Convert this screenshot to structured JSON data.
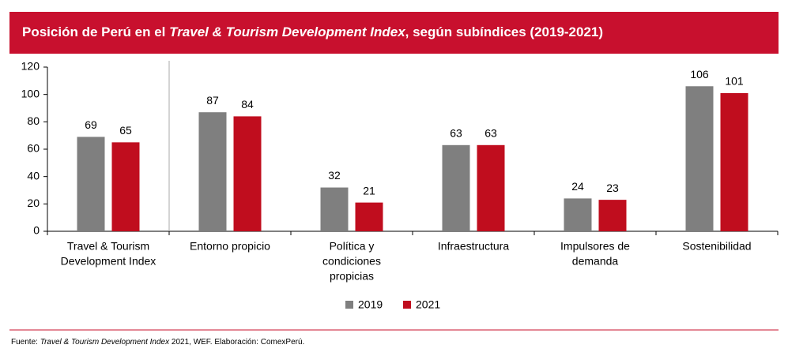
{
  "chart_data": {
    "type": "bar",
    "title": [
      "Posición de Perú en el ",
      "Travel & Tourism Development Index",
      ", según subíndices (2019-2021)"
    ],
    "categories": [
      [
        "Travel & Tourism",
        "Development Index"
      ],
      [
        "Entorno propicio"
      ],
      [
        "Política y",
        "condiciones",
        "propicias"
      ],
      [
        "Infraestructura"
      ],
      [
        "Impulsores de",
        "demanda"
      ],
      [
        "Sostenibilidad"
      ]
    ],
    "series": [
      {
        "name": "2019",
        "color": "#7f7f7f",
        "values": [
          69,
          87,
          32,
          63,
          24,
          106
        ]
      },
      {
        "name": "2021",
        "color": "#c00d1e",
        "values": [
          65,
          84,
          21,
          63,
          23,
          101
        ]
      }
    ],
    "ylim": [
      0,
      120
    ],
    "yticks": [
      0,
      20,
      40,
      60,
      80,
      100,
      120
    ],
    "source": [
      "Fuente: ",
      "Travel & Tourism Development Index",
      " 2021, WEF. Elaboración: ComexPerú."
    ]
  }
}
